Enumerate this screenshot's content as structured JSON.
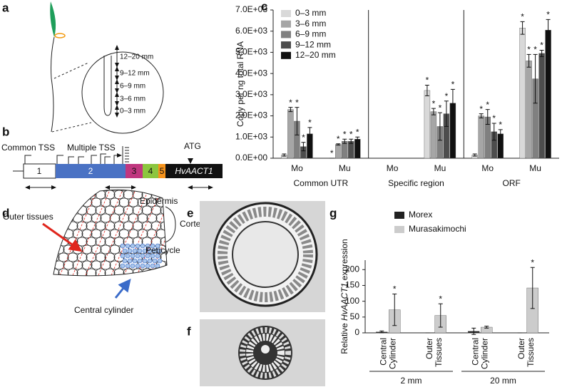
{
  "panel_labels": [
    "a",
    "b",
    "c",
    "d",
    "e",
    "f",
    "g"
  ],
  "panel_a": {
    "zones": [
      "12–20 mm",
      "9–12 mm",
      "6–9 mm",
      "3–6 mm",
      "0–3 mm"
    ]
  },
  "panel_b": {
    "labels": [
      "Common TSS",
      "Multiple TSS",
      "ATG"
    ],
    "exons": [
      "1",
      "2",
      "3",
      "4",
      "5",
      "HvAACT1"
    ]
  },
  "panel_d": {
    "labels": [
      "Epidermis",
      "Cortex",
      "Pericycle",
      "Outer tissues",
      "Central cylinder"
    ]
  },
  "chart_data": [
    {
      "type": "bar",
      "y_label": "Copy per ng total RNA",
      "categories": [
        "Mo",
        "Mu",
        "Mo",
        "Mu",
        "Mo",
        "Mu"
      ],
      "groups": [
        "Common UTR",
        "Specific region",
        "ORF"
      ],
      "ylim": [
        0,
        7000
      ],
      "yticks": [
        {
          "value": 0,
          "label": "0.0E+00"
        },
        {
          "value": 1000,
          "label": "1.0E+03"
        },
        {
          "value": 2000,
          "label": "2.0E+03"
        },
        {
          "value": 3000,
          "label": "3.0E+03"
        },
        {
          "value": 4000,
          "label": "4.0E+03"
        },
        {
          "value": 5000,
          "label": "5.0E+03"
        },
        {
          "value": 6000,
          "label": "6.0E+03"
        },
        {
          "value": 7000,
          "label": "7.0E+03"
        }
      ],
      "series": [
        {
          "name": "0–3 mm",
          "color": "#d9d9d9",
          "values": [
            150,
            0,
            null,
            3200,
            150,
            6150
          ],
          "errors": [
            50,
            0,
            null,
            250,
            50,
            300
          ],
          "annotations": [
            null,
            "*",
            null,
            "*",
            null,
            "*"
          ]
        },
        {
          "name": "3–6 mm",
          "color": "#a6a6a6",
          "values": [
            2300,
            650,
            null,
            2200,
            2000,
            4600
          ],
          "errors": [
            100,
            30,
            null,
            150,
            100,
            300
          ],
          "annotations": [
            "*",
            "*",
            null,
            "*",
            "*",
            "*"
          ]
        },
        {
          "name": "6–9 mm",
          "color": "#808080",
          "values": [
            1750,
            800,
            null,
            1500,
            1950,
            3750
          ],
          "errors": [
            650,
            100,
            null,
            650,
            350,
            1150
          ],
          "annotations": [
            "*",
            "*",
            null,
            "*",
            "*",
            "*"
          ]
        },
        {
          "name": "9–12 mm",
          "color": "#4d4d4d",
          "values": [
            550,
            800,
            null,
            2100,
            1250,
            4950
          ],
          "errors": [
            200,
            100,
            null,
            600,
            400,
            150
          ],
          "annotations": [
            "*",
            "*",
            null,
            "*",
            "*",
            "*"
          ]
        },
        {
          "name": "12–20 mm",
          "color": "#111111",
          "values": [
            1150,
            900,
            null,
            2600,
            1150,
            6050
          ],
          "errors": [
            300,
            100,
            null,
            650,
            200,
            500
          ],
          "annotations": [
            "*",
            "*",
            null,
            "*",
            "*",
            "*"
          ]
        }
      ]
    },
    {
      "type": "bar",
      "y_label": [
        "Relative",
        "HvAACT1",
        "expression"
      ],
      "categories": [
        [
          "Central",
          "Cylinder"
        ],
        [
          "Outer",
          "Tissues"
        ],
        [
          "Central",
          "Cylinder"
        ],
        [
          "Outer",
          "Tissues"
        ]
      ],
      "groups": [
        "2 mm",
        "20 mm"
      ],
      "ylim": [
        0,
        230
      ],
      "yticks": [
        0,
        50,
        100,
        150,
        200
      ],
      "series": [
        {
          "name": "Morex",
          "color": "#222222",
          "values": [
            3,
            0,
            5,
            0
          ],
          "errors": [
            3,
            0,
            10,
            0
          ],
          "annotations": [
            null,
            null,
            null,
            null
          ]
        },
        {
          "name": "Murasakimochi",
          "color": "#cccccc",
          "values": [
            73,
            55,
            18,
            142
          ],
          "errors": [
            50,
            37,
            3,
            65
          ],
          "annotations": [
            "*",
            "*",
            null,
            "*"
          ]
        }
      ]
    }
  ]
}
